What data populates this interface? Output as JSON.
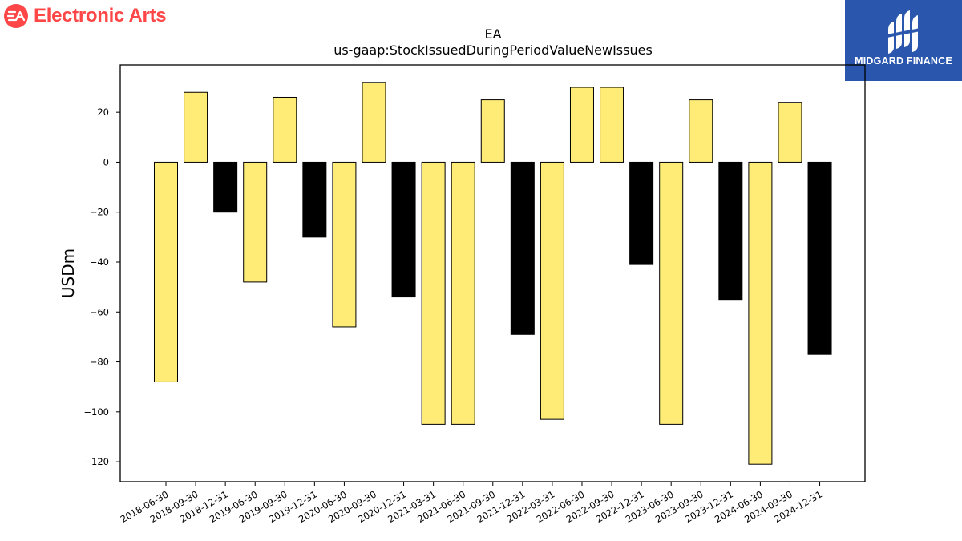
{
  "brand": {
    "company": "Electronic Arts",
    "logo_text": "EA",
    "logo_color": "#ff4747"
  },
  "publisher": {
    "name": "MIDGARD FINANCE",
    "bg_color": "#2a57ad"
  },
  "chart_data": {
    "type": "bar",
    "title": "EA",
    "subtitle": "us-gaap:StockIssuedDuringPeriodValueNewIssues",
    "xlabel": "",
    "ylabel": "USDm",
    "ylim": [
      -128,
      39
    ],
    "yticks": [
      20,
      0,
      -20,
      -40,
      -60,
      -80,
      -100,
      -120
    ],
    "grid": false,
    "categories": [
      "2018-06-30",
      "2018-09-30",
      "2018-12-31",
      "2019-06-30",
      "2019-09-30",
      "2019-12-31",
      "2020-06-30",
      "2020-09-30",
      "2020-12-31",
      "2021-03-31",
      "2021-06-30",
      "2021-09-30",
      "2021-12-31",
      "2022-03-31",
      "2022-06-30",
      "2022-09-30",
      "2022-12-31",
      "2023-06-30",
      "2023-09-30",
      "2023-12-31",
      "2024-06-30",
      "2024-09-30",
      "2024-12-31"
    ],
    "values": [
      -88,
      28,
      -20,
      -48,
      26,
      -30,
      -66,
      32,
      -54,
      -105,
      -105,
      25,
      -69,
      -103,
      30,
      30,
      -41,
      -105,
      25,
      -55,
      -121,
      24,
      -77
    ],
    "colors": [
      "#ffec77",
      "#ffec77",
      "#000000",
      "#ffec77",
      "#ffec77",
      "#000000",
      "#ffec77",
      "#ffec77",
      "#000000",
      "#ffec77",
      "#ffec77",
      "#ffec77",
      "#000000",
      "#ffec77",
      "#ffec77",
      "#ffec77",
      "#000000",
      "#ffec77",
      "#ffec77",
      "#000000",
      "#ffec77",
      "#ffec77",
      "#000000"
    ]
  }
}
